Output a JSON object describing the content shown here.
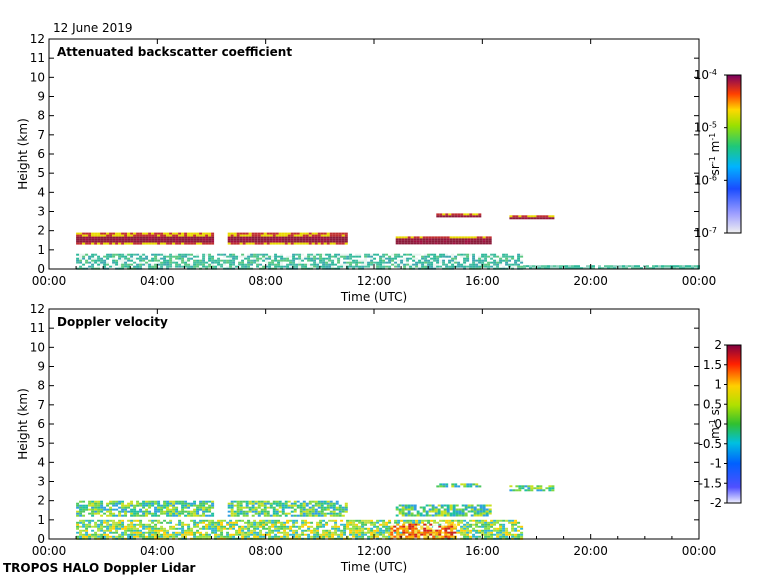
{
  "date_label": "12 June 2019",
  "footer_label": "TROPOS HALO Doppler Lidar",
  "colors": {
    "cloud_core": "#8b1a3a",
    "cloud_edge": "#e8d800",
    "aerosol": "#2fb89a",
    "velocity_green": "#4cc860",
    "velocity_red": "#d22020"
  },
  "chart_data": [
    {
      "type": "heatmap",
      "title": "Attenuated backscatter coefficient",
      "xlabel": "Time (UTC)",
      "ylabel": "Height (km)",
      "x_ticks": [
        "00:00",
        "04:00",
        "08:00",
        "12:00",
        "16:00",
        "20:00",
        "00:00"
      ],
      "y_ticks": [
        "0",
        "1",
        "2",
        "3",
        "4",
        "5",
        "6",
        "7",
        "8",
        "9",
        "10",
        "11",
        "12"
      ],
      "xlim_hours": [
        0,
        24
      ],
      "ylim_km": [
        0,
        12
      ],
      "colorbar": {
        "scale": "log",
        "ticks": [
          "10",
          "10",
          "10",
          "10"
        ],
        "tick_exponents": [
          "-4",
          "-5",
          "-6",
          "-7"
        ],
        "unit_base": [
          "sr",
          "m"
        ],
        "unit_exponents": [
          "-1",
          "-1"
        ],
        "range": [
          1e-07,
          0.0001
        ]
      },
      "features": [
        {
          "kind": "cloud_layer",
          "t_start": 1.0,
          "t_end": 6.0,
          "h_low": 1.3,
          "h_high": 1.9
        },
        {
          "kind": "cloud_layer",
          "t_start": 6.6,
          "t_end": 11.0,
          "h_low": 1.3,
          "h_high": 1.9
        },
        {
          "kind": "cloud_layer",
          "t_start": 12.8,
          "t_end": 16.3,
          "h_low": 1.3,
          "h_high": 1.7
        },
        {
          "kind": "cloud_layer",
          "t_start": 14.3,
          "t_end": 15.9,
          "h_low": 2.7,
          "h_high": 2.9
        },
        {
          "kind": "cloud_layer",
          "t_start": 17.0,
          "t_end": 18.6,
          "h_low": 2.6,
          "h_high": 2.8
        },
        {
          "kind": "boundary_layer",
          "t_start": 1.0,
          "t_end": 17.5,
          "h_low": 0.0,
          "h_high": 0.8
        },
        {
          "kind": "surface_layer",
          "t_start": 17.5,
          "t_end": 24.0,
          "h_low": 0.0,
          "h_high": 0.2
        }
      ]
    },
    {
      "type": "heatmap",
      "title": "Doppler velocity",
      "xlabel": "Time (UTC)",
      "ylabel": "Height (km)",
      "x_ticks": [
        "00:00",
        "04:00",
        "08:00",
        "12:00",
        "16:00",
        "20:00",
        "00:00"
      ],
      "y_ticks": [
        "0",
        "1",
        "2",
        "3",
        "4",
        "5",
        "6",
        "7",
        "8",
        "9",
        "10",
        "11",
        "12"
      ],
      "xlim_hours": [
        0,
        24
      ],
      "ylim_km": [
        0,
        12
      ],
      "colorbar": {
        "scale": "linear",
        "ticks": [
          "2",
          "1.5",
          "1",
          "0.5",
          "0",
          "-0.5",
          "-1",
          "-1.5",
          "-2"
        ],
        "unit_base": [
          "m",
          "s"
        ],
        "unit_exponents": [
          "-1"
        ],
        "range": [
          -2,
          2
        ]
      },
      "features": [
        {
          "kind": "cloud_layer",
          "t_start": 1.0,
          "t_end": 6.0,
          "h_low": 1.2,
          "h_high": 2.0
        },
        {
          "kind": "cloud_layer",
          "t_start": 6.6,
          "t_end": 11.0,
          "h_low": 1.2,
          "h_high": 2.0
        },
        {
          "kind": "cloud_layer",
          "t_start": 12.8,
          "t_end": 16.3,
          "h_low": 1.2,
          "h_high": 1.8
        },
        {
          "kind": "cloud_layer",
          "t_start": 14.3,
          "t_end": 15.9,
          "h_low": 2.7,
          "h_high": 2.9
        },
        {
          "kind": "cloud_layer",
          "t_start": 17.0,
          "t_end": 18.6,
          "h_low": 2.5,
          "h_high": 2.8
        },
        {
          "kind": "boundary_layer",
          "t_start": 1.0,
          "t_end": 17.5,
          "h_low": 0.0,
          "h_high": 1.0
        },
        {
          "kind": "updraft",
          "t_start": 12.6,
          "t_end": 15.0,
          "h_low": 0.0,
          "h_high": 0.8
        }
      ]
    }
  ]
}
